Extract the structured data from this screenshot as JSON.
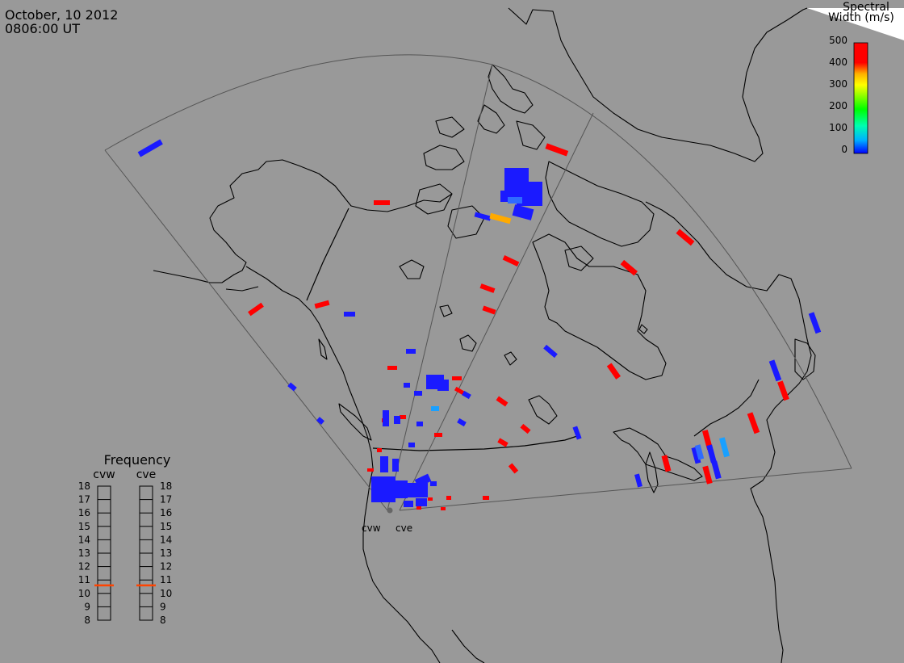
{
  "header": {
    "date": "October, 10 2012",
    "time": "0806:00 UT"
  },
  "colorbar": {
    "title_line1": "Spectral",
    "title_line2": "Width (m/s)",
    "ticks": [
      "500",
      "400",
      "300",
      "200",
      "100",
      "0"
    ],
    "colors": [
      "#0000ff",
      "#00b0ff",
      "#00ffb0",
      "#00ff00",
      "#b0ff00",
      "#ffff00",
      "#ffb000",
      "#ff0000"
    ]
  },
  "frequency_panel": {
    "title": "Frequency",
    "radars": [
      "cvw",
      "cve"
    ],
    "ticks": [
      "18",
      "17",
      "16",
      "15",
      "14",
      "13",
      "12",
      "11",
      "10",
      "9",
      "8"
    ],
    "current_mhz": [
      10.6,
      10.6
    ],
    "marker_color": "#ff4400"
  },
  "radar_sites": [
    "cvw",
    "cve"
  ],
  "colors": {
    "background": "#999999",
    "coast": "#000000",
    "fov": "#555555",
    "red": "#ff0000",
    "blue": "#1a1aff",
    "mid_blue": "#2f6bff",
    "cyan": "#1aa0ff",
    "orange": "#ffaa00"
  }
}
